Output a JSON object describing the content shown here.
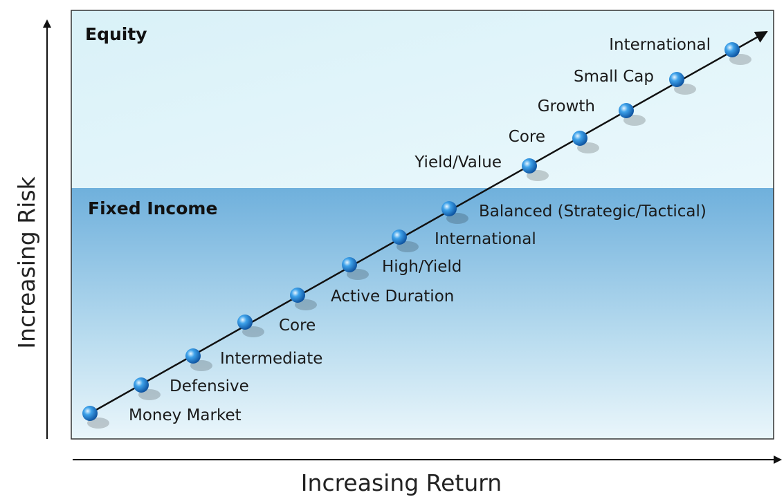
{
  "zones": [
    {
      "label": "Equity"
    },
    {
      "label": "Fixed Income"
    }
  ],
  "points": [
    {
      "label": "Money Market"
    },
    {
      "label": "Defensive"
    },
    {
      "label": "Intermediate"
    },
    {
      "label": "Core"
    },
    {
      "label": "Active Duration"
    },
    {
      "label": "High/Yield"
    },
    {
      "label": "International"
    },
    {
      "label": "Balanced (Strategic/Tactical)"
    },
    {
      "label": "Yield/Value"
    },
    {
      "label": "Core"
    },
    {
      "label": "Growth"
    },
    {
      "label": "Small Cap"
    },
    {
      "label": "International"
    }
  ],
  "axes": {
    "y": "Increasing Risk",
    "x": "Increasing Return"
  }
}
